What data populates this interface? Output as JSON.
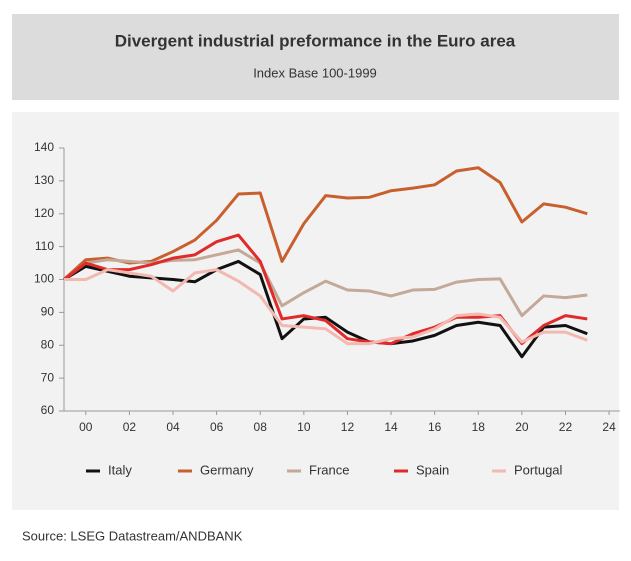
{
  "chart_data": {
    "type": "line",
    "title": "Divergent industrial preformance in the Euro area",
    "subtitle": "Index Base 100-1999",
    "source": "Source: LSEG Datastream/ANDBANK",
    "x": [
      1999,
      2000,
      2001,
      2002,
      2003,
      2004,
      2005,
      2006,
      2007,
      2008,
      2009,
      2010,
      2011,
      2012,
      2013,
      2014,
      2015,
      2016,
      2017,
      2018,
      2019,
      2020,
      2021,
      2022,
      2023
    ],
    "xlim": [
      1999,
      2024.5
    ],
    "xticks": [
      {
        "value": 2000,
        "label": "00"
      },
      {
        "value": 2002,
        "label": "02"
      },
      {
        "value": 2004,
        "label": "04"
      },
      {
        "value": 2006,
        "label": "06"
      },
      {
        "value": 2008,
        "label": "08"
      },
      {
        "value": 2010,
        "label": "10"
      },
      {
        "value": 2012,
        "label": "12"
      },
      {
        "value": 2014,
        "label": "14"
      },
      {
        "value": 2016,
        "label": "16"
      },
      {
        "value": 2018,
        "label": "18"
      },
      {
        "value": 2020,
        "label": "20"
      },
      {
        "value": 2022,
        "label": "22"
      },
      {
        "value": 2024,
        "label": "24"
      }
    ],
    "ylim": [
      60,
      140
    ],
    "yticks": [
      60,
      70,
      80,
      90,
      100,
      110,
      120,
      130,
      140
    ],
    "legend": "bottom",
    "series": [
      {
        "name": "Italy",
        "color": "#111111",
        "values": [
          100,
          104,
          102.5,
          101,
          100.5,
          100,
          99.3,
          103,
          105.5,
          101.5,
          82,
          88,
          88.5,
          84,
          81,
          80.5,
          81.3,
          83,
          86,
          87,
          86,
          76.5,
          85.5,
          86,
          83.5
        ]
      },
      {
        "name": "Germany",
        "color": "#c8602e",
        "values": [
          100,
          106,
          106.5,
          105,
          105.5,
          108.5,
          112,
          118,
          126,
          126.3,
          105.5,
          117,
          125.5,
          124.8,
          125,
          127,
          127.8,
          128.8,
          133,
          134,
          129.5,
          117.5,
          123,
          122,
          120
        ]
      },
      {
        "name": "France",
        "color": "#c4a898",
        "values": [
          100,
          105,
          106,
          105.5,
          105,
          105.8,
          106,
          107.5,
          109,
          105,
          92,
          96,
          99.5,
          96.8,
          96.5,
          95,
          96.8,
          97,
          99.2,
          100,
          100.2,
          89,
          95,
          94.5,
          95.3
        ]
      },
      {
        "name": "Spain",
        "color": "#e02b2b",
        "values": [
          100,
          105,
          103,
          103,
          104.5,
          106.5,
          107.5,
          111.5,
          113.5,
          105.5,
          88,
          89,
          87.5,
          82,
          81,
          80.5,
          83.5,
          85.5,
          88.5,
          88.5,
          89,
          80.5,
          86,
          89,
          88
        ]
      },
      {
        "name": "Portugal",
        "color": "#f3b8b0",
        "values": [
          100,
          100,
          103,
          102,
          101,
          96.5,
          102,
          103,
          99.5,
          95,
          86,
          85.5,
          85,
          80.5,
          80.5,
          82,
          82.5,
          85,
          89,
          89.5,
          88.5,
          81,
          84,
          84,
          81.5
        ]
      }
    ]
  }
}
